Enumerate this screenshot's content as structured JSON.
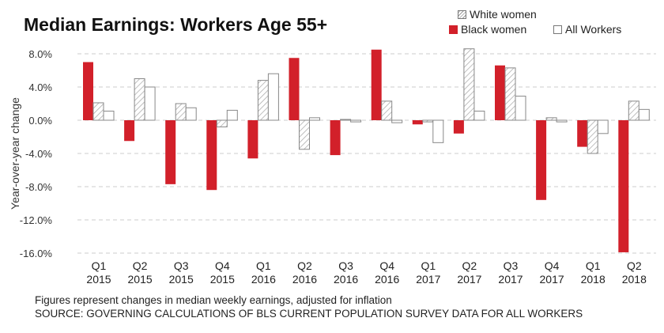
{
  "chart_data": {
    "type": "bar",
    "title": "Median Earnings: Workers Age 55+",
    "ylabel": "Year-over-year change",
    "xlabel": "",
    "ylim": [
      -16,
      8
    ],
    "yticks": [
      "8.0%",
      "4.0%",
      "0.0%",
      "-4.0%",
      "-8.0%",
      "-12.0%",
      "-16.0%"
    ],
    "ytick_values": [
      8,
      4,
      0,
      -4,
      -8,
      -12,
      -16
    ],
    "categories": [
      [
        "Q1",
        "2015"
      ],
      [
        "Q2",
        "2015"
      ],
      [
        "Q3",
        "2015"
      ],
      [
        "Q4",
        "2015"
      ],
      [
        "Q1",
        "2016"
      ],
      [
        "Q2",
        "2016"
      ],
      [
        "Q3",
        "2016"
      ],
      [
        "Q4",
        "2016"
      ],
      [
        "Q1",
        "2017"
      ],
      [
        "Q2",
        "2017"
      ],
      [
        "Q3",
        "2017"
      ],
      [
        "Q4",
        "2017"
      ],
      [
        "Q1",
        "2018"
      ],
      [
        "Q2",
        "2018"
      ]
    ],
    "series": [
      {
        "name": "Black women",
        "color": "#d2202a",
        "values": [
          7.0,
          -2.5,
          -7.7,
          -8.4,
          -4.6,
          7.5,
          -4.2,
          8.5,
          -0.5,
          -1.6,
          6.6,
          -9.6,
          -3.2,
          -15.9
        ]
      },
      {
        "name": "White women",
        "color": "#e8e8e8",
        "pattern": "hatch",
        "values": [
          2.1,
          5.0,
          2.0,
          -0.8,
          4.8,
          -3.5,
          0.1,
          2.3,
          -0.2,
          8.6,
          6.3,
          0.3,
          -4.0,
          2.3
        ]
      },
      {
        "name": "All Workers",
        "color": "#ffffff",
        "values": [
          1.1,
          4.0,
          1.5,
          1.2,
          5.6,
          0.3,
          -0.2,
          -0.3,
          -2.7,
          1.1,
          2.9,
          -0.2,
          -1.6,
          1.3
        ]
      }
    ],
    "grid": true,
    "legend_position": "top-right"
  },
  "footnotes": [
    "Figures represent changes in median weekly earnings, adjusted for inflation",
    "SOURCE: GOVERNING CALCULATIONS OF BLS CURRENT POPULATION SURVEY DATA FOR ALL WORKERS"
  ]
}
